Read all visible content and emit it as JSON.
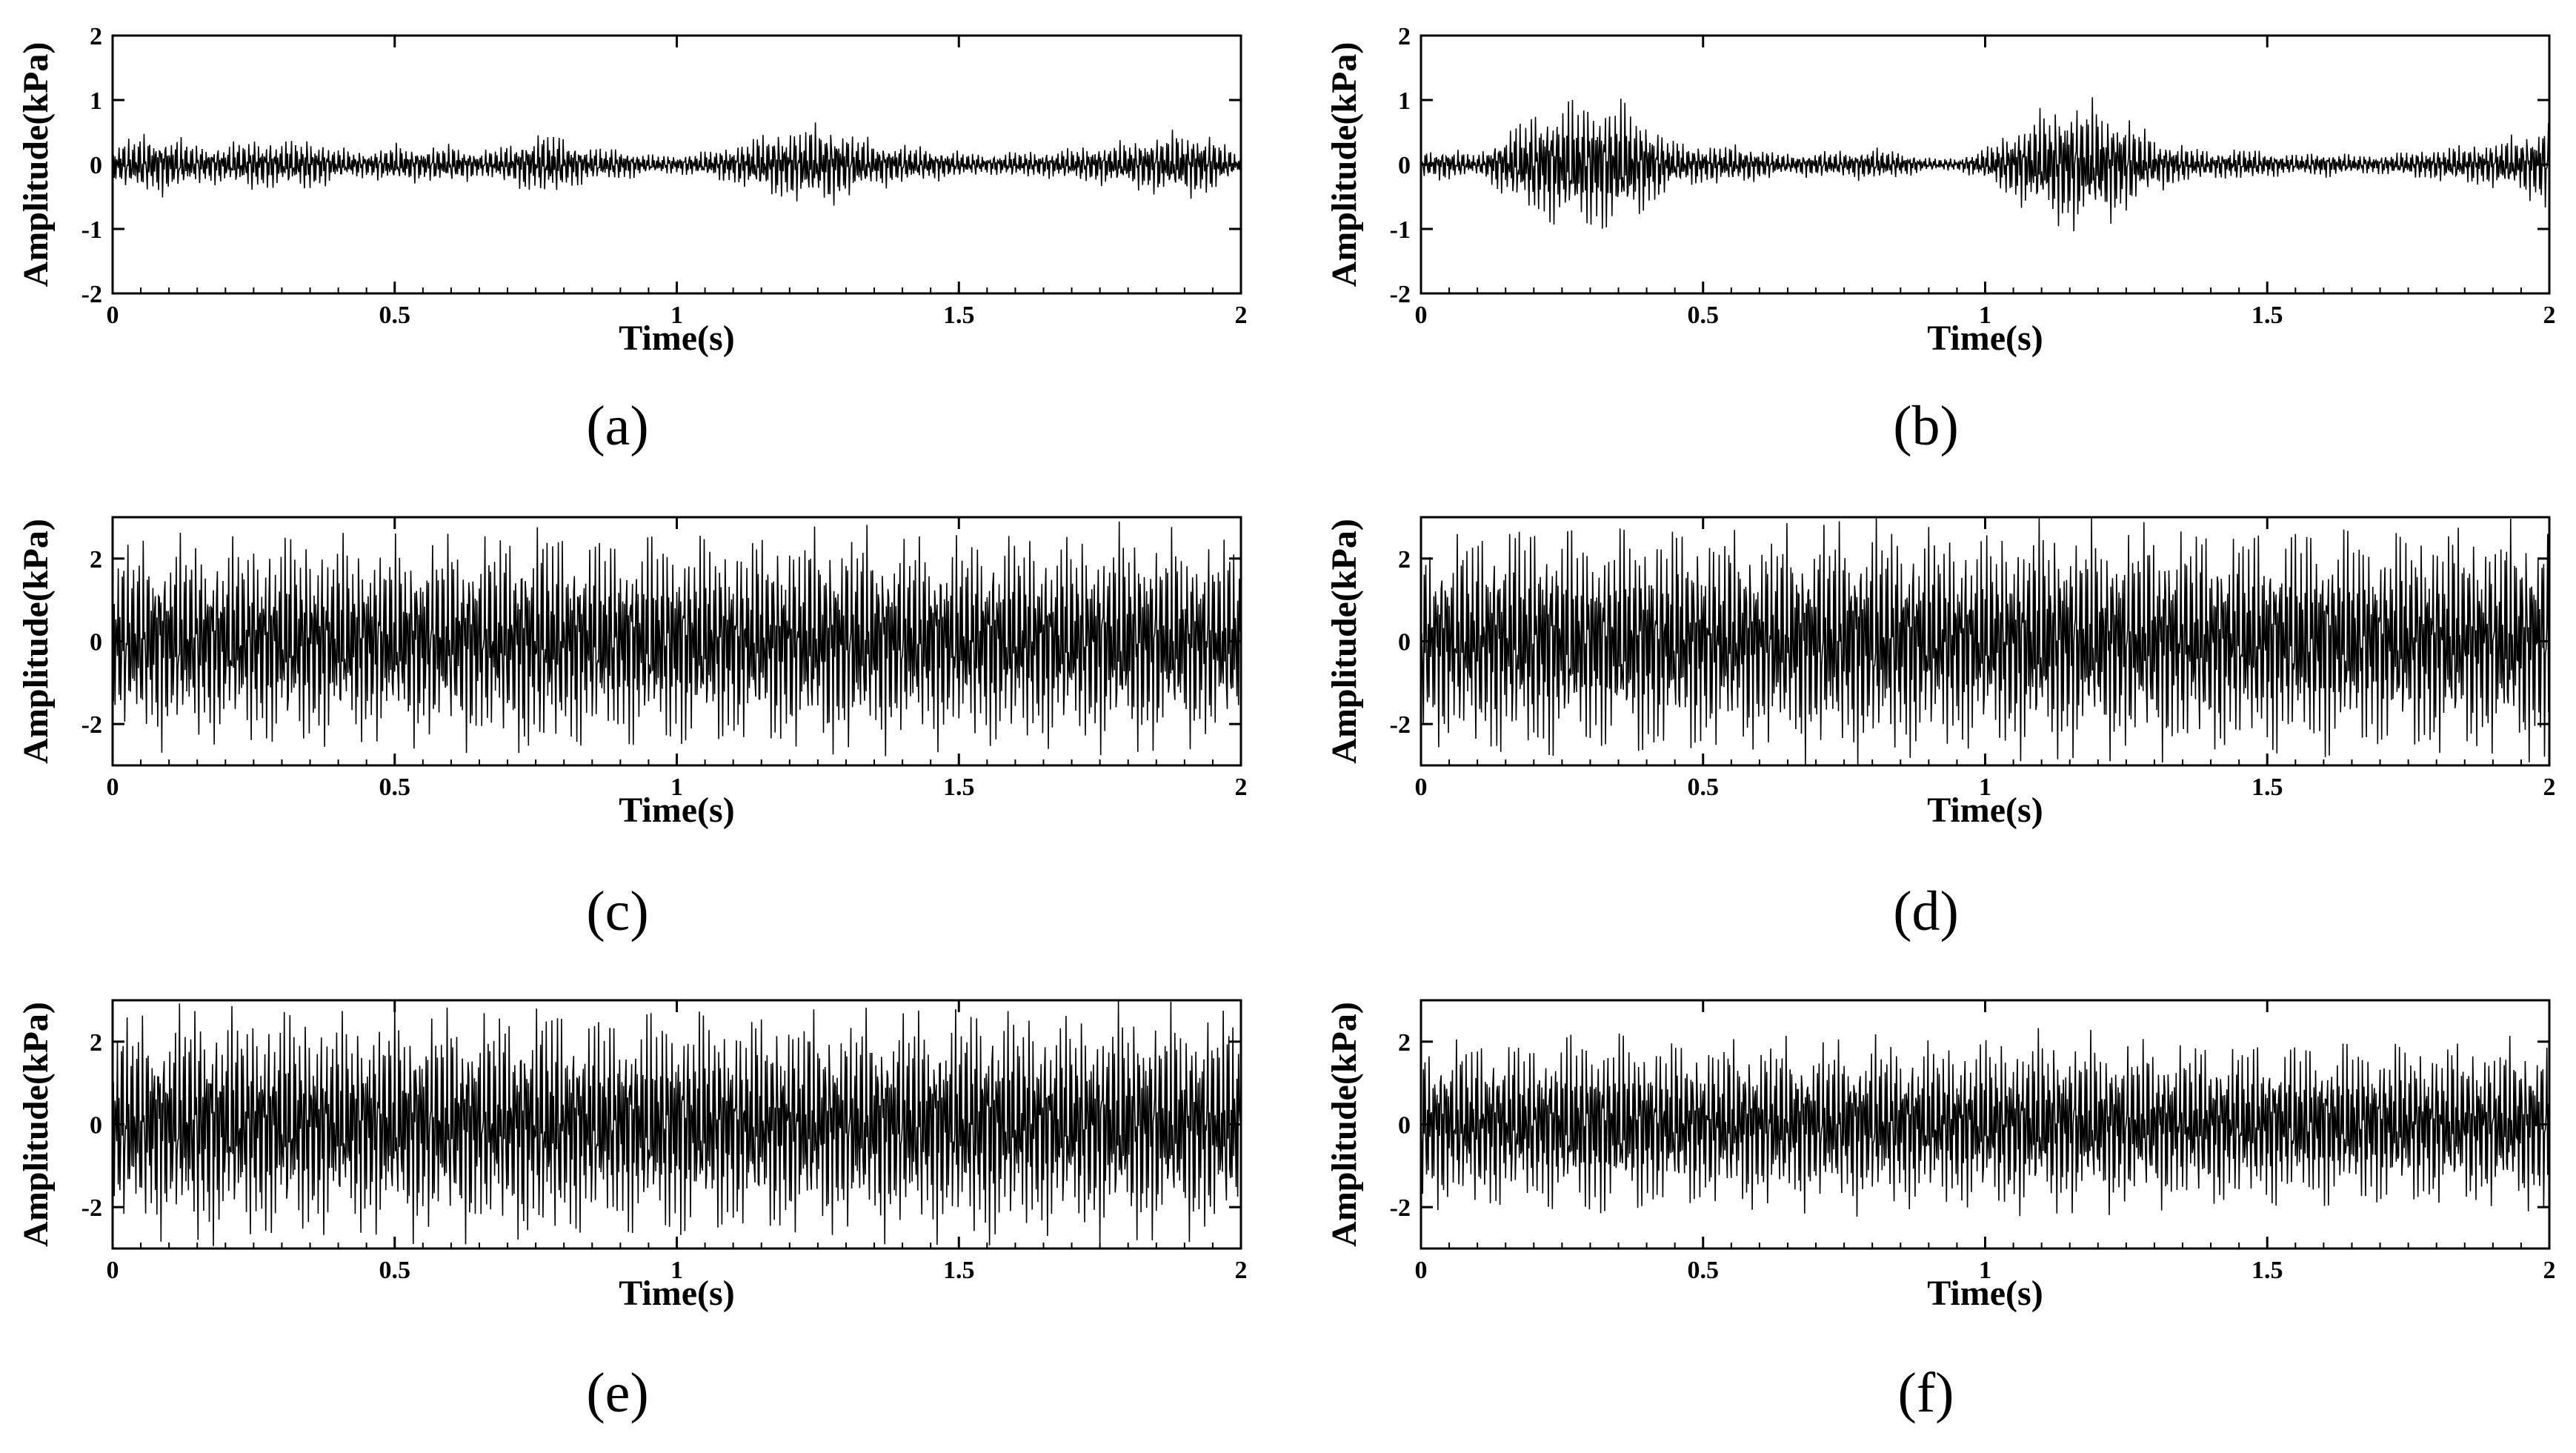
{
  "chart_data": [
    {
      "panel": "(a)",
      "type": "line",
      "xlabel": "Time(s)",
      "ylabel": "Amplitude(kPa)",
      "xlim": [
        0,
        2
      ],
      "ylim": [
        -2,
        2
      ],
      "xticks": [
        "0",
        "0.5",
        "1",
        "1.5",
        "2"
      ],
      "yticks": [
        "2",
        "1",
        "0",
        "-1",
        "-2"
      ],
      "series": [
        {
          "color": "#000000",
          "x": [
            0,
            0.05,
            0.1,
            0.15,
            0.2,
            0.25,
            0.3,
            0.35,
            0.4,
            0.45,
            0.5,
            0.55,
            0.6,
            0.65,
            0.7,
            0.75,
            0.78,
            0.8,
            0.85,
            0.9,
            0.95,
            1.0,
            1.05,
            1.1,
            1.15,
            1.2,
            1.25,
            1.28,
            1.3,
            1.35,
            1.4,
            1.45,
            1.5,
            1.55,
            1.6,
            1.65,
            1.7,
            1.75,
            1.8,
            1.85,
            1.9,
            1.95,
            2.0
          ],
          "envelope": [
            0.3,
            0.45,
            0.45,
            0.3,
            0.3,
            0.4,
            0.35,
            0.4,
            0.25,
            0.2,
            0.3,
            0.25,
            0.3,
            0.2,
            0.3,
            0.45,
            0.5,
            0.4,
            0.25,
            0.25,
            0.15,
            0.15,
            0.2,
            0.3,
            0.45,
            0.55,
            0.6,
            0.6,
            0.5,
            0.35,
            0.3,
            0.25,
            0.2,
            0.15,
            0.2,
            0.2,
            0.25,
            0.3,
            0.35,
            0.45,
            0.5,
            0.45,
            0.1
          ]
        }
      ]
    },
    {
      "panel": "(b)",
      "type": "line",
      "xlabel": "Time(s)",
      "ylabel": "Amplitude(kPa)",
      "xlim": [
        0,
        2
      ],
      "ylim": [
        -2,
        2
      ],
      "xticks": [
        "0",
        "0.5",
        "1",
        "1.5",
        "2"
      ],
      "yticks": [
        "2",
        "1",
        "0",
        "-1",
        "-2"
      ],
      "series": [
        {
          "color": "#000000",
          "x": [
            0,
            0.05,
            0.1,
            0.15,
            0.2,
            0.25,
            0.3,
            0.35,
            0.4,
            0.45,
            0.5,
            0.55,
            0.6,
            0.65,
            0.7,
            0.75,
            0.8,
            0.85,
            0.9,
            0.95,
            1.0,
            1.05,
            1.1,
            1.15,
            1.2,
            1.25,
            1.3,
            1.35,
            1.4,
            1.45,
            1.5,
            1.55,
            1.6,
            1.65,
            1.7,
            1.75,
            1.8,
            1.85,
            1.9,
            1.95,
            2.0
          ],
          "envelope": [
            0.2,
            0.25,
            0.15,
            0.5,
            0.8,
            0.95,
            1.0,
            1.0,
            0.7,
            0.35,
            0.3,
            0.3,
            0.25,
            0.15,
            0.2,
            0.2,
            0.25,
            0.2,
            0.1,
            0.1,
            0.25,
            0.55,
            0.8,
            1.0,
            0.9,
            0.75,
            0.4,
            0.3,
            0.2,
            0.25,
            0.2,
            0.15,
            0.2,
            0.15,
            0.15,
            0.2,
            0.25,
            0.3,
            0.35,
            0.45,
            0.7
          ]
        }
      ]
    },
    {
      "panel": "(c)",
      "type": "line",
      "xlabel": "Time(s)",
      "ylabel": "Amplitude(kPa)",
      "xlim": [
        0,
        2
      ],
      "ylim": [
        -3,
        3
      ],
      "xticks": [
        "0",
        "0.5",
        "1",
        "1.5",
        "2"
      ],
      "yticks": [
        "2",
        "0",
        "-2"
      ],
      "series": [
        {
          "color": "#000000",
          "x": [
            0,
            0.1,
            0.2,
            0.3,
            0.4,
            0.5,
            0.6,
            0.7,
            0.76,
            0.8,
            0.9,
            1.0,
            1.1,
            1.2,
            1.3,
            1.4,
            1.5,
            1.6,
            1.7,
            1.8,
            1.9,
            2.0
          ],
          "envelope": [
            2.2,
            2.4,
            2.3,
            2.5,
            2.4,
            2.3,
            2.4,
            2.5,
            2.8,
            2.5,
            2.4,
            2.5,
            2.4,
            2.5,
            2.6,
            2.4,
            2.4,
            2.5,
            2.4,
            2.6,
            2.4,
            2.3
          ]
        }
      ]
    },
    {
      "panel": "(d)",
      "type": "line",
      "xlabel": "Time(s)",
      "ylabel": "Amplitude(kPa)",
      "xlim": [
        0,
        2
      ],
      "ylim": [
        -3,
        3
      ],
      "xticks": [
        "0",
        "0.5",
        "1",
        "1.5",
        "2"
      ],
      "yticks": [
        "2",
        "0",
        "-2"
      ],
      "series": [
        {
          "color": "#000000",
          "x": [
            0,
            0.1,
            0.2,
            0.3,
            0.4,
            0.5,
            0.6,
            0.7,
            0.8,
            0.9,
            1.0,
            1.1,
            1.2,
            1.3,
            1.4,
            1.5,
            1.6,
            1.7,
            1.8,
            1.9,
            2.0
          ],
          "envelope": [
            2.3,
            2.6,
            2.8,
            2.5,
            2.7,
            2.6,
            2.5,
            2.7,
            2.8,
            2.6,
            2.5,
            2.8,
            2.6,
            2.7,
            2.6,
            2.6,
            2.7,
            2.5,
            2.7,
            2.6,
            2.8
          ]
        }
      ]
    },
    {
      "panel": "(e)",
      "type": "line",
      "xlabel": "Time(s)",
      "ylabel": "Amplitude(kPa)",
      "xlim": [
        0,
        2
      ],
      "ylim": [
        -3,
        3
      ],
      "xticks": [
        "0",
        "0.5",
        "1",
        "1.5",
        "2"
      ],
      "yticks": [
        "2",
        "0",
        "-2"
      ],
      "series": [
        {
          "color": "#000000",
          "x": [
            0,
            0.1,
            0.15,
            0.2,
            0.3,
            0.4,
            0.5,
            0.6,
            0.7,
            0.78,
            0.8,
            0.9,
            1.0,
            1.1,
            1.2,
            1.3,
            1.4,
            1.5,
            1.54,
            1.6,
            1.7,
            1.8,
            1.9,
            2.0
          ],
          "envelope": [
            2.5,
            2.5,
            2.9,
            2.6,
            2.7,
            2.5,
            2.6,
            2.6,
            2.6,
            2.9,
            2.6,
            2.5,
            2.7,
            2.5,
            2.6,
            2.5,
            2.6,
            2.6,
            2.9,
            2.6,
            2.5,
            2.7,
            2.6,
            2.6
          ]
        }
      ]
    },
    {
      "panel": "(f)",
      "type": "line",
      "xlabel": "Time(s)",
      "ylabel": "Amplitude(kPa)",
      "xlim": [
        0,
        2
      ],
      "ylim": [
        -3,
        3
      ],
      "xticks": [
        "0",
        "0.5",
        "1",
        "1.5",
        "2"
      ],
      "yticks": [
        "2",
        "0",
        "-2"
      ],
      "series": [
        {
          "color": "#000000",
          "x": [
            0,
            0.1,
            0.2,
            0.3,
            0.4,
            0.5,
            0.6,
            0.7,
            0.8,
            0.9,
            1.0,
            1.1,
            1.2,
            1.3,
            1.4,
            1.5,
            1.6,
            1.7,
            1.8,
            1.9,
            2.0
          ],
          "envelope": [
            1.9,
            2.0,
            1.9,
            2.2,
            2.0,
            1.9,
            2.0,
            1.9,
            2.0,
            1.9,
            2.0,
            2.1,
            2.0,
            1.9,
            1.9,
            1.9,
            1.9,
            1.9,
            1.9,
            1.9,
            2.0
          ]
        }
      ]
    }
  ]
}
